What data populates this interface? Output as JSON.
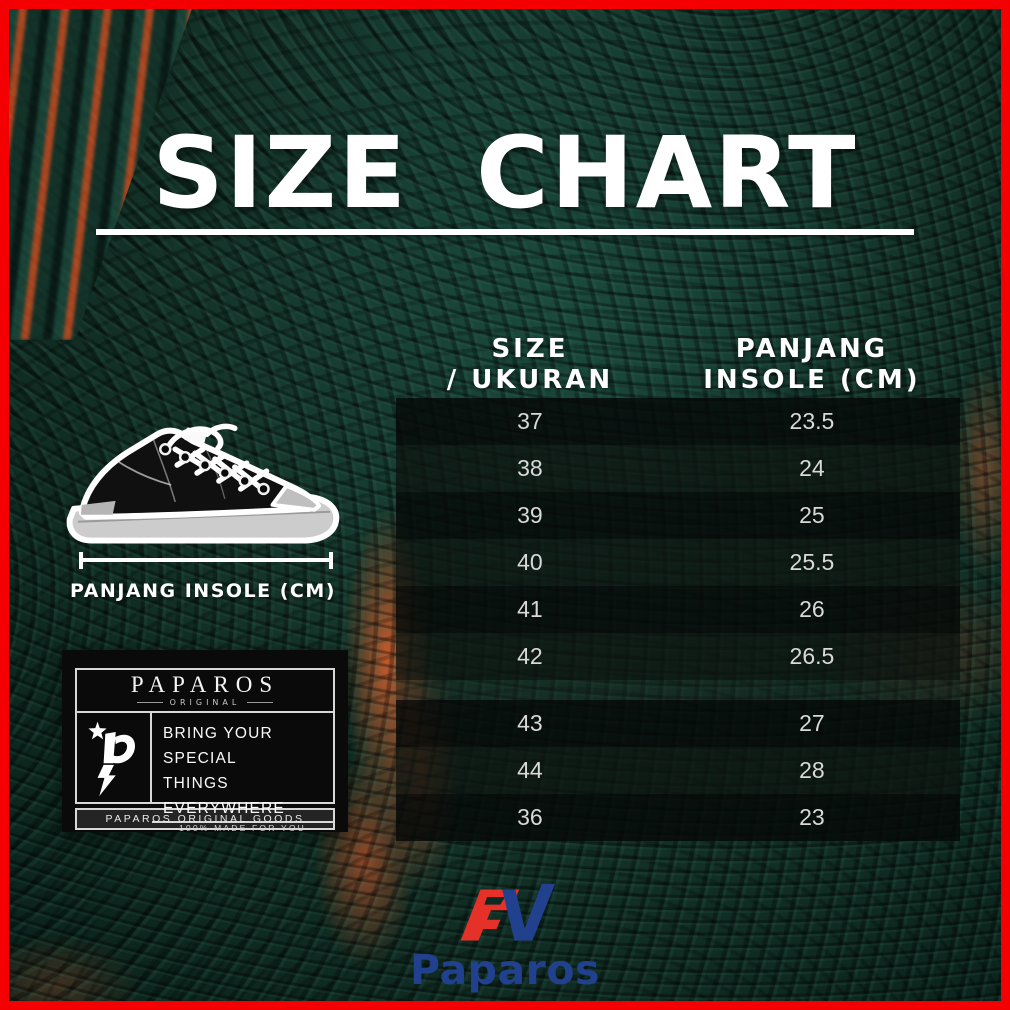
{
  "title": {
    "text": "SIZE CHART"
  },
  "size_table": {
    "header": {
      "col1_line1": "SIZE",
      "col1_line2": "/ UKURAN",
      "col2_line1": "PANJANG",
      "col2_line2": "INSOLE (CM)"
    },
    "rows": [
      {
        "size": "37",
        "insole": "23.5"
      },
      {
        "size": "38",
        "insole": "24"
      },
      {
        "size": "39",
        "insole": "25"
      },
      {
        "size": "40",
        "insole": "25.5"
      },
      {
        "size": "41",
        "insole": "26"
      },
      {
        "size": "42",
        "insole": "26.5"
      },
      {
        "size": "43",
        "insole": "27"
      },
      {
        "size": "44",
        "insole": "28"
      },
      {
        "size": "36",
        "insole": "23"
      }
    ],
    "gap_after_index": 5
  },
  "shoe": {
    "caption": "PANJANG INSOLE (CM)"
  },
  "brand_tag": {
    "brand": "PAPAROS",
    "brand_sub": "ORIGINAL",
    "tagline_line1": "BRING YOUR SPECIAL",
    "tagline_line2": "THINGS EVERYWHERE",
    "made_for_you": "100% MADE FOR YOU",
    "footer": "PAPAROS ORIGINAL GOODS"
  },
  "footer_logo": {
    "brand": "Paparos"
  },
  "colors": {
    "frame_red": "#f50002",
    "bg_green_dark": "#0a211b",
    "bg_green": "#143329",
    "accent_orange": "#de602c",
    "logo_red": "#e63129",
    "logo_blue": "#21418e",
    "row_text": "#d9d9d9",
    "header_text": "#ffffff"
  },
  "chart_data": {
    "type": "table",
    "title": "SIZE CHART",
    "columns": [
      "SIZE / UKURAN",
      "PANJANG INSOLE (CM)"
    ],
    "rows": [
      [
        37,
        23.5
      ],
      [
        38,
        24
      ],
      [
        39,
        25
      ],
      [
        40,
        25.5
      ],
      [
        41,
        26
      ],
      [
        42,
        26.5
      ],
      [
        43,
        27
      ],
      [
        44,
        28
      ],
      [
        36,
        23
      ]
    ]
  }
}
